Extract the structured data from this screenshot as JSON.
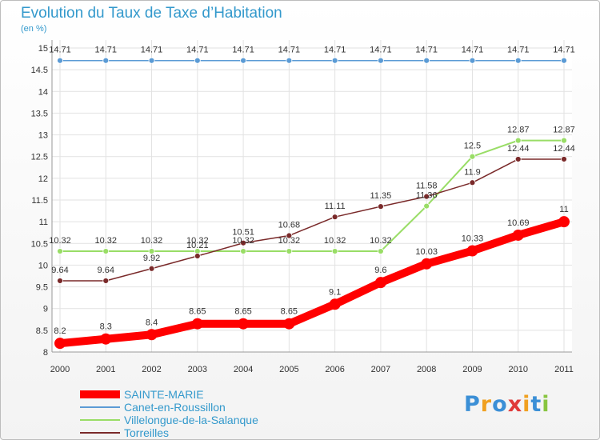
{
  "title": "Evolution du Taux de Taxe d’Habitation",
  "unit_label": "(en %)",
  "logo_text": "Proxiti",
  "chart_data": {
    "type": "line",
    "title": "Evolution du Taux de Taxe d’Habitation",
    "xlabel": "",
    "ylabel": "(en %)",
    "x": [
      "2000",
      "2001",
      "2002",
      "2003",
      "2004",
      "2005",
      "2006",
      "2007",
      "2008",
      "2009",
      "2010",
      "2011"
    ],
    "ylim": [
      8,
      15
    ],
    "yticks": [
      "8",
      "8.5",
      "9",
      "9.5",
      "10",
      "10.5",
      "11",
      "11.5",
      "12",
      "12.5",
      "13",
      "13.5",
      "14",
      "14.5",
      "15"
    ],
    "grid": true,
    "legend_position": "bottom-left",
    "series": [
      {
        "name": "SAINTE-MARIE",
        "color": "#ff0000",
        "values": [
          8.2,
          8.3,
          8.4,
          8.65,
          8.65,
          8.65,
          9.1,
          9.6,
          10.03,
          10.33,
          10.69,
          11
        ],
        "labels": [
          "8.2",
          "8.3",
          "8.4",
          "8.65",
          "8.65",
          "8.65",
          "9.1",
          "9.6",
          "10.03",
          "10.33",
          "10.69",
          "11"
        ]
      },
      {
        "name": "Canet-en-Roussillon",
        "color": "#5b9bd5",
        "values": [
          14.71,
          14.71,
          14.71,
          14.71,
          14.71,
          14.71,
          14.71,
          14.71,
          14.71,
          14.71,
          14.71,
          14.71
        ],
        "labels": [
          "14.71",
          "14.71",
          "14.71",
          "14.71",
          "14.71",
          "14.71",
          "14.71",
          "14.71",
          "14.71",
          "14.71",
          "14.71",
          "14.71"
        ]
      },
      {
        "name": "Villelongue-de-la-Salanque",
        "color": "#99dd66",
        "values": [
          10.32,
          10.32,
          10.32,
          10.32,
          10.32,
          10.32,
          10.32,
          10.32,
          11.36,
          12.5,
          12.87,
          12.87
        ],
        "labels": [
          "10.32",
          "10.32",
          "10.32",
          "10.32",
          "10.32",
          "10.32",
          "10.32",
          "10.32",
          "11.36",
          "12.5",
          "12.87",
          "12.87"
        ]
      },
      {
        "name": "Torreilles",
        "color": "#7a2a2a",
        "values": [
          9.64,
          9.64,
          9.92,
          10.21,
          10.51,
          10.68,
          11.11,
          11.35,
          11.58,
          11.9,
          12.44,
          12.44
        ],
        "labels": [
          "9.64",
          "9.64",
          "9.92",
          "10.21",
          "10.51",
          "10.68",
          "11.11",
          "11.35",
          "11.58",
          "11.9",
          "12.44",
          "12.44"
        ]
      }
    ]
  }
}
